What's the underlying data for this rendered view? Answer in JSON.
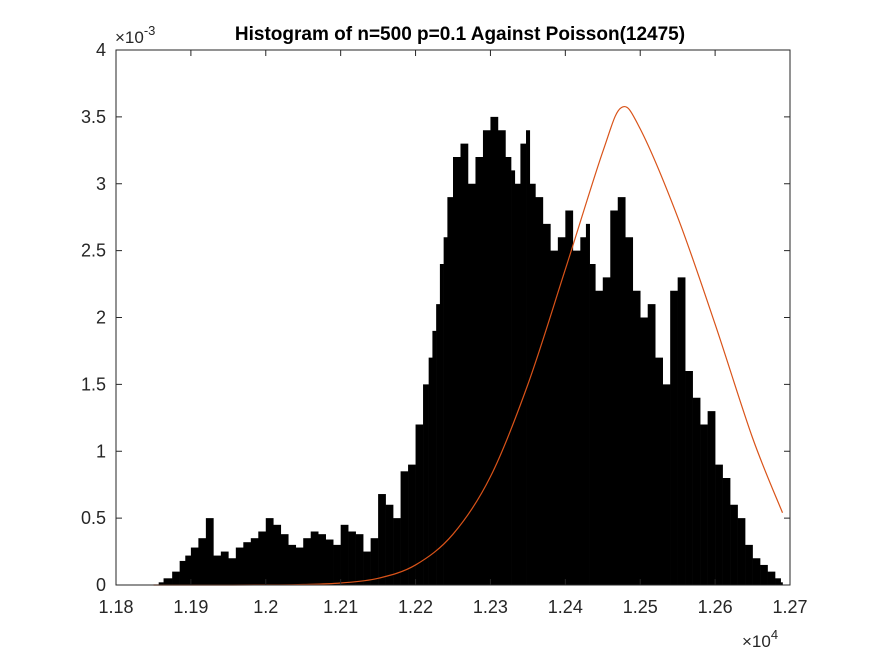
{
  "chart_data": {
    "type": "bar",
    "title": "Histogram of n=500 p=0.1 Against Poisson(12475)",
    "xlabel": "",
    "ylabel": "",
    "xlim": [
      11800,
      12700
    ],
    "ylim": [
      0,
      0.004
    ],
    "x_scale_label": "×10",
    "x_scale_exp": "4",
    "y_scale_label": "×10",
    "y_scale_exp": "-3",
    "x_ticks": [
      11800,
      11900,
      12000,
      12100,
      12200,
      12300,
      12400,
      12500,
      12600,
      12700
    ],
    "x_tick_labels": [
      "1.18",
      "1.19",
      "1.2",
      "1.21",
      "1.22",
      "1.23",
      "1.24",
      "1.25",
      "1.26",
      "1.27"
    ],
    "y_ticks": [
      0,
      0.0005,
      0.001,
      0.0015,
      0.002,
      0.0025,
      0.003,
      0.0035,
      0.004
    ],
    "y_tick_labels": [
      "0",
      "0.5",
      "1",
      "1.5",
      "2",
      "2.5",
      "3",
      "3.5",
      "4"
    ],
    "grid": false,
    "series": [
      {
        "kind": "histogram",
        "color": "#000000",
        "x": [
          11857,
          11870,
          11880,
          11890,
          11895,
          11905,
          11915,
          11925,
          11935,
          11945,
          11955,
          11965,
          11975,
          11985,
          11995,
          12005,
          12015,
          12025,
          12035,
          12045,
          12055,
          12065,
          12075,
          12085,
          12095,
          12105,
          12115,
          12125,
          12135,
          12145,
          12155,
          12165,
          12175,
          12185,
          12195,
          12205,
          12215,
          12220,
          12225,
          12230,
          12235,
          12240,
          12245,
          12255,
          12265,
          12275,
          12285,
          12295,
          12305,
          12315,
          12325,
          12330,
          12335,
          12345,
          12350,
          12355,
          12365,
          12375,
          12385,
          12395,
          12405,
          12415,
          12425,
          12430,
          12435,
          12445,
          12455,
          12465,
          12475,
          12485,
          12495,
          12505,
          12515,
          12525,
          12535,
          12545,
          12555,
          12565,
          12575,
          12585,
          12595,
          12605,
          12615,
          12625,
          12635,
          12645,
          12655,
          12665,
          12675,
          12685,
          12690
        ],
        "values": [
          2e-05,
          5e-05,
          0.0001,
          0.00018,
          0.00022,
          0.00028,
          0.00035,
          0.0005,
          0.00022,
          0.00025,
          0.0002,
          0.00028,
          0.00032,
          0.00035,
          0.0004,
          0.0005,
          0.00045,
          0.00038,
          0.0003,
          0.00028,
          0.00035,
          0.0004,
          0.00038,
          0.00034,
          0.0003,
          0.00045,
          0.0004,
          0.00038,
          0.00025,
          0.00035,
          0.00068,
          0.0006,
          0.0005,
          0.00085,
          0.0009,
          0.0012,
          0.0015,
          0.0017,
          0.0019,
          0.0021,
          0.0024,
          0.0026,
          0.0029,
          0.0032,
          0.0033,
          0.003,
          0.0032,
          0.0034,
          0.0035,
          0.0034,
          0.0032,
          0.0031,
          0.003,
          0.0033,
          0.0034,
          0.003,
          0.0029,
          0.0027,
          0.0025,
          0.0026,
          0.0028,
          0.0025,
          0.0026,
          0.0027,
          0.0024,
          0.0022,
          0.0023,
          0.0028,
          0.0029,
          0.0026,
          0.0022,
          0.002,
          0.0021,
          0.0017,
          0.0015,
          0.0022,
          0.0023,
          0.0016,
          0.0014,
          0.0012,
          0.0013,
          0.0009,
          0.0008,
          0.0006,
          0.0005,
          0.0003,
          0.0002,
          0.00015,
          0.0001,
          5e-05,
          2e-05
        ]
      },
      {
        "kind": "line",
        "color": "#D95319",
        "x": [
          11850,
          11900,
          11950,
          12000,
          12050,
          12100,
          12150,
          12200,
          12250,
          12300,
          12350,
          12400,
          12450,
          12475,
          12500,
          12550,
          12600,
          12650,
          12690
        ],
        "values": [
          0.0,
          0.0,
          0.0,
          1e-06,
          4e-06,
          1.5e-05,
          5e-05,
          0.00015,
          0.00038,
          0.00081,
          0.0015,
          0.00236,
          0.00324,
          0.00357,
          0.00341,
          0.00275,
          0.00195,
          0.0011,
          0.00054
        ]
      }
    ]
  }
}
